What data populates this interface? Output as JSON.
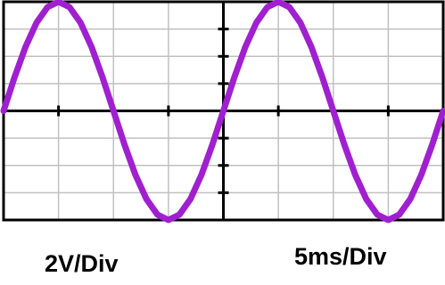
{
  "chart_data": {
    "type": "line",
    "annotations": [
      "2V/Div",
      "5ms/Div"
    ],
    "x": [
      0,
      1,
      2,
      3,
      4,
      5,
      6,
      7,
      8,
      9,
      10,
      11,
      12,
      13,
      14,
      15,
      16,
      17,
      18,
      19,
      20,
      21,
      22,
      23,
      24,
      25,
      26,
      27,
      28,
      29,
      30,
      31,
      32,
      33,
      34,
      35,
      36,
      37,
      38,
      39,
      40
    ],
    "values": [
      0,
      2.47,
      4.7,
      6.47,
      7.61,
      8,
      7.61,
      6.47,
      4.7,
      2.47,
      0,
      -2.47,
      -4.7,
      -6.47,
      -7.61,
      -8,
      -7.61,
      -6.47,
      -4.7,
      -2.47,
      0,
      2.47,
      4.7,
      6.47,
      7.61,
      8,
      7.61,
      6.47,
      4.7,
      2.47,
      0,
      -2.47,
      -4.7,
      -6.47,
      -7.61,
      -8,
      -7.61,
      -6.47,
      -4.7,
      -2.47,
      0
    ],
    "color": "#a020d0",
    "xlim": [
      0,
      40
    ],
    "ylim": [
      -8,
      8
    ],
    "xticks": [
      0,
      5,
      10,
      15,
      20,
      25,
      30,
      35,
      40
    ],
    "yticks": [
      -8,
      -6,
      -4,
      -2,
      0,
      2,
      4,
      6,
      8
    ],
    "grid": true
  }
}
